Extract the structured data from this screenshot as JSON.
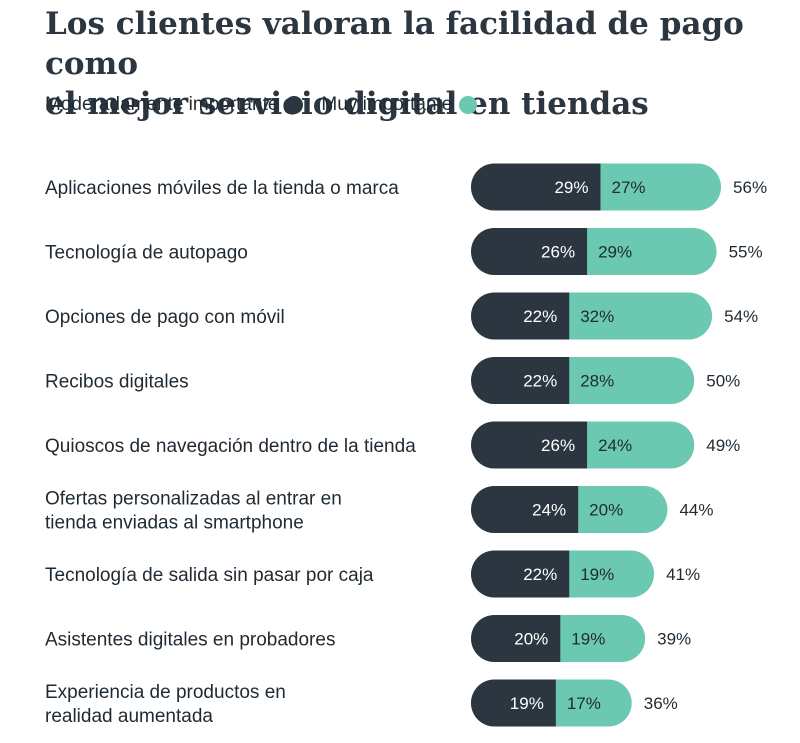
{
  "title_lines": [
    "Los clientes valoran la facilidad de pago como",
    "el mejor servicio digital en tiendas"
  ],
  "legend": [
    {
      "label": "Moderadamente importante",
      "color": "#2c3640"
    },
    {
      "label": "Muy importante",
      "color": "#6cc9b1"
    }
  ],
  "chart_data": {
    "type": "bar",
    "orientation": "horizontal",
    "stacked": true,
    "categories": [
      [
        "Aplicaciones móviles de la tienda o marca"
      ],
      [
        "Tecnología de autopago"
      ],
      [
        "Opciones de pago con móvil"
      ],
      [
        "Recibos digitales"
      ],
      [
        "Quioscos de navegación dentro de la tienda"
      ],
      [
        "Ofertas personalizadas al entrar en",
        "tienda enviadas al smartphone"
      ],
      [
        "Tecnología de salida sin pasar por caja"
      ],
      [
        "Asistentes digitales en probadores"
      ],
      [
        "Experiencia de productos en",
        "realidad aumentada"
      ]
    ],
    "series": [
      {
        "name": "Moderadamente importante",
        "color": "#2c3640",
        "label_color": "#ffffff",
        "values": [
          29,
          26,
          22,
          22,
          26,
          24,
          22,
          20,
          19
        ]
      },
      {
        "name": "Muy importante",
        "color": "#6cc9b1",
        "label_color": "#1f2a33",
        "values": [
          27,
          29,
          32,
          28,
          24,
          20,
          19,
          19,
          17
        ]
      }
    ],
    "totals": [
      56,
      55,
      54,
      50,
      49,
      44,
      41,
      39,
      36
    ],
    "value_suffix": "%"
  }
}
